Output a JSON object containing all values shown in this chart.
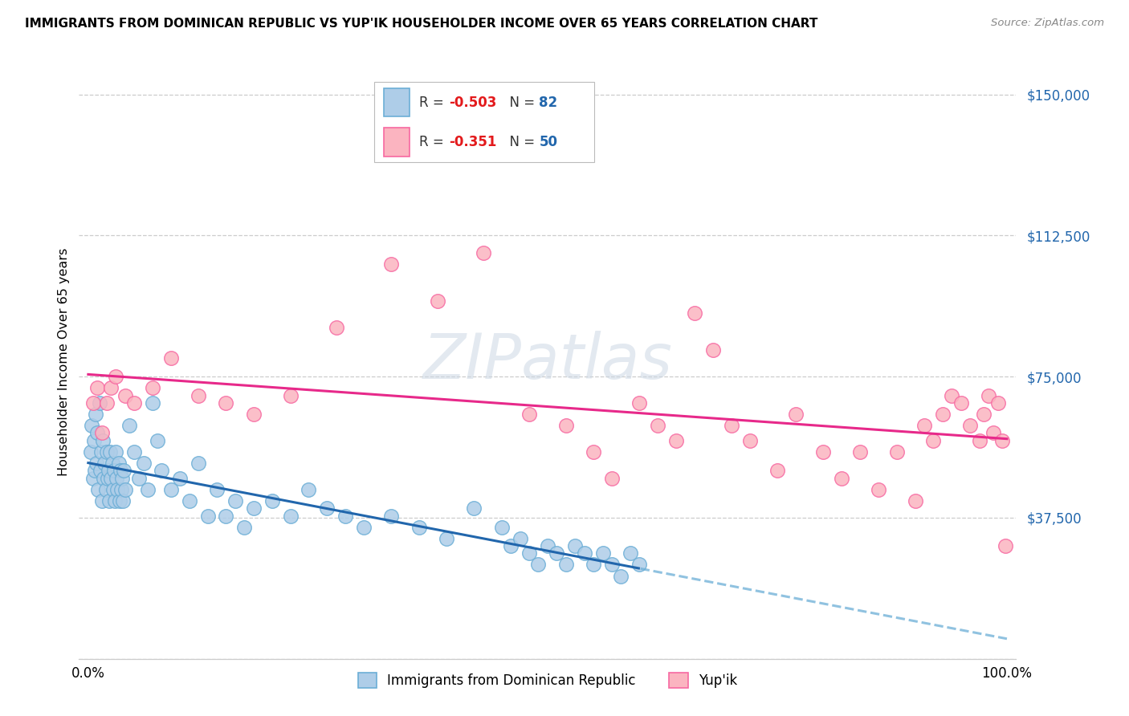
{
  "title": "IMMIGRANTS FROM DOMINICAN REPUBLIC VS YUP'IK HOUSEHOLDER INCOME OVER 65 YEARS CORRELATION CHART",
  "source": "Source: ZipAtlas.com",
  "ylabel": "Householder Income Over 65 years",
  "watermark": "ZIPatlas",
  "legend1_r": "-0.503",
  "legend1_n": "82",
  "legend2_r": "-0.351",
  "legend2_n": "50",
  "legend1_label": "Immigrants from Dominican Republic",
  "legend2_label": "Yup'ik",
  "blue_scatter_fill": "#aecde8",
  "blue_scatter_edge": "#6baed6",
  "pink_scatter_fill": "#fbb4c0",
  "pink_scatter_edge": "#f768a1",
  "blue_line_color": "#2166ac",
  "blue_dash_color": "#6baed6",
  "pink_line_color": "#e7298a",
  "y_ticks": [
    0,
    37500,
    75000,
    112500,
    150000
  ],
  "y_tick_labels": [
    "",
    "$37,500",
    "$75,000",
    "$112,500",
    "$150,000"
  ],
  "y_tick_color": "#2166ac",
  "xlim": [
    -1,
    101
  ],
  "ylim": [
    0,
    158000
  ],
  "blue_x": [
    0.3,
    0.4,
    0.5,
    0.6,
    0.7,
    0.8,
    0.9,
    1.0,
    1.1,
    1.2,
    1.3,
    1.4,
    1.5,
    1.6,
    1.7,
    1.8,
    1.9,
    2.0,
    2.1,
    2.2,
    2.3,
    2.4,
    2.5,
    2.6,
    2.7,
    2.8,
    2.9,
    3.0,
    3.1,
    3.2,
    3.3,
    3.4,
    3.5,
    3.6,
    3.7,
    3.8,
    3.9,
    4.0,
    4.5,
    5.0,
    5.5,
    6.0,
    6.5,
    7.0,
    7.5,
    8.0,
    9.0,
    10.0,
    11.0,
    12.0,
    13.0,
    14.0,
    15.0,
    16.0,
    17.0,
    18.0,
    20.0,
    22.0,
    24.0,
    26.0,
    28.0,
    30.0,
    33.0,
    36.0,
    39.0,
    42.0,
    45.0,
    46.0,
    47.0,
    48.0,
    49.0,
    50.0,
    51.0,
    52.0,
    53.0,
    54.0,
    55.0,
    56.0,
    57.0,
    58.0,
    59.0,
    60.0
  ],
  "blue_y": [
    55000,
    62000,
    48000,
    58000,
    50000,
    65000,
    52000,
    60000,
    45000,
    68000,
    50000,
    55000,
    42000,
    58000,
    48000,
    52000,
    45000,
    55000,
    48000,
    50000,
    42000,
    55000,
    48000,
    52000,
    45000,
    50000,
    42000,
    55000,
    48000,
    45000,
    52000,
    42000,
    50000,
    45000,
    48000,
    42000,
    50000,
    45000,
    62000,
    55000,
    48000,
    52000,
    45000,
    68000,
    58000,
    50000,
    45000,
    48000,
    42000,
    52000,
    38000,
    45000,
    38000,
    42000,
    35000,
    40000,
    42000,
    38000,
    45000,
    40000,
    38000,
    35000,
    38000,
    35000,
    32000,
    40000,
    35000,
    30000,
    32000,
    28000,
    25000,
    30000,
    28000,
    25000,
    30000,
    28000,
    25000,
    28000,
    25000,
    22000,
    28000,
    25000
  ],
  "pink_x": [
    0.5,
    1.0,
    1.5,
    2.0,
    2.5,
    3.0,
    4.0,
    5.0,
    7.0,
    9.0,
    12.0,
    15.0,
    18.0,
    22.0,
    27.0,
    33.0,
    38.0,
    43.0,
    48.0,
    52.0,
    55.0,
    57.0,
    60.0,
    62.0,
    64.0,
    66.0,
    68.0,
    70.0,
    72.0,
    75.0,
    77.0,
    80.0,
    82.0,
    84.0,
    86.0,
    88.0,
    90.0,
    91.0,
    92.0,
    93.0,
    94.0,
    95.0,
    96.0,
    97.0,
    97.5,
    98.0,
    98.5,
    99.0,
    99.5,
    99.8
  ],
  "pink_y": [
    68000,
    72000,
    60000,
    68000,
    72000,
    75000,
    70000,
    68000,
    72000,
    80000,
    70000,
    68000,
    65000,
    70000,
    88000,
    105000,
    95000,
    108000,
    65000,
    62000,
    55000,
    48000,
    68000,
    62000,
    58000,
    92000,
    82000,
    62000,
    58000,
    50000,
    65000,
    55000,
    48000,
    55000,
    45000,
    55000,
    42000,
    62000,
    58000,
    65000,
    70000,
    68000,
    62000,
    58000,
    65000,
    70000,
    60000,
    68000,
    58000,
    30000
  ]
}
